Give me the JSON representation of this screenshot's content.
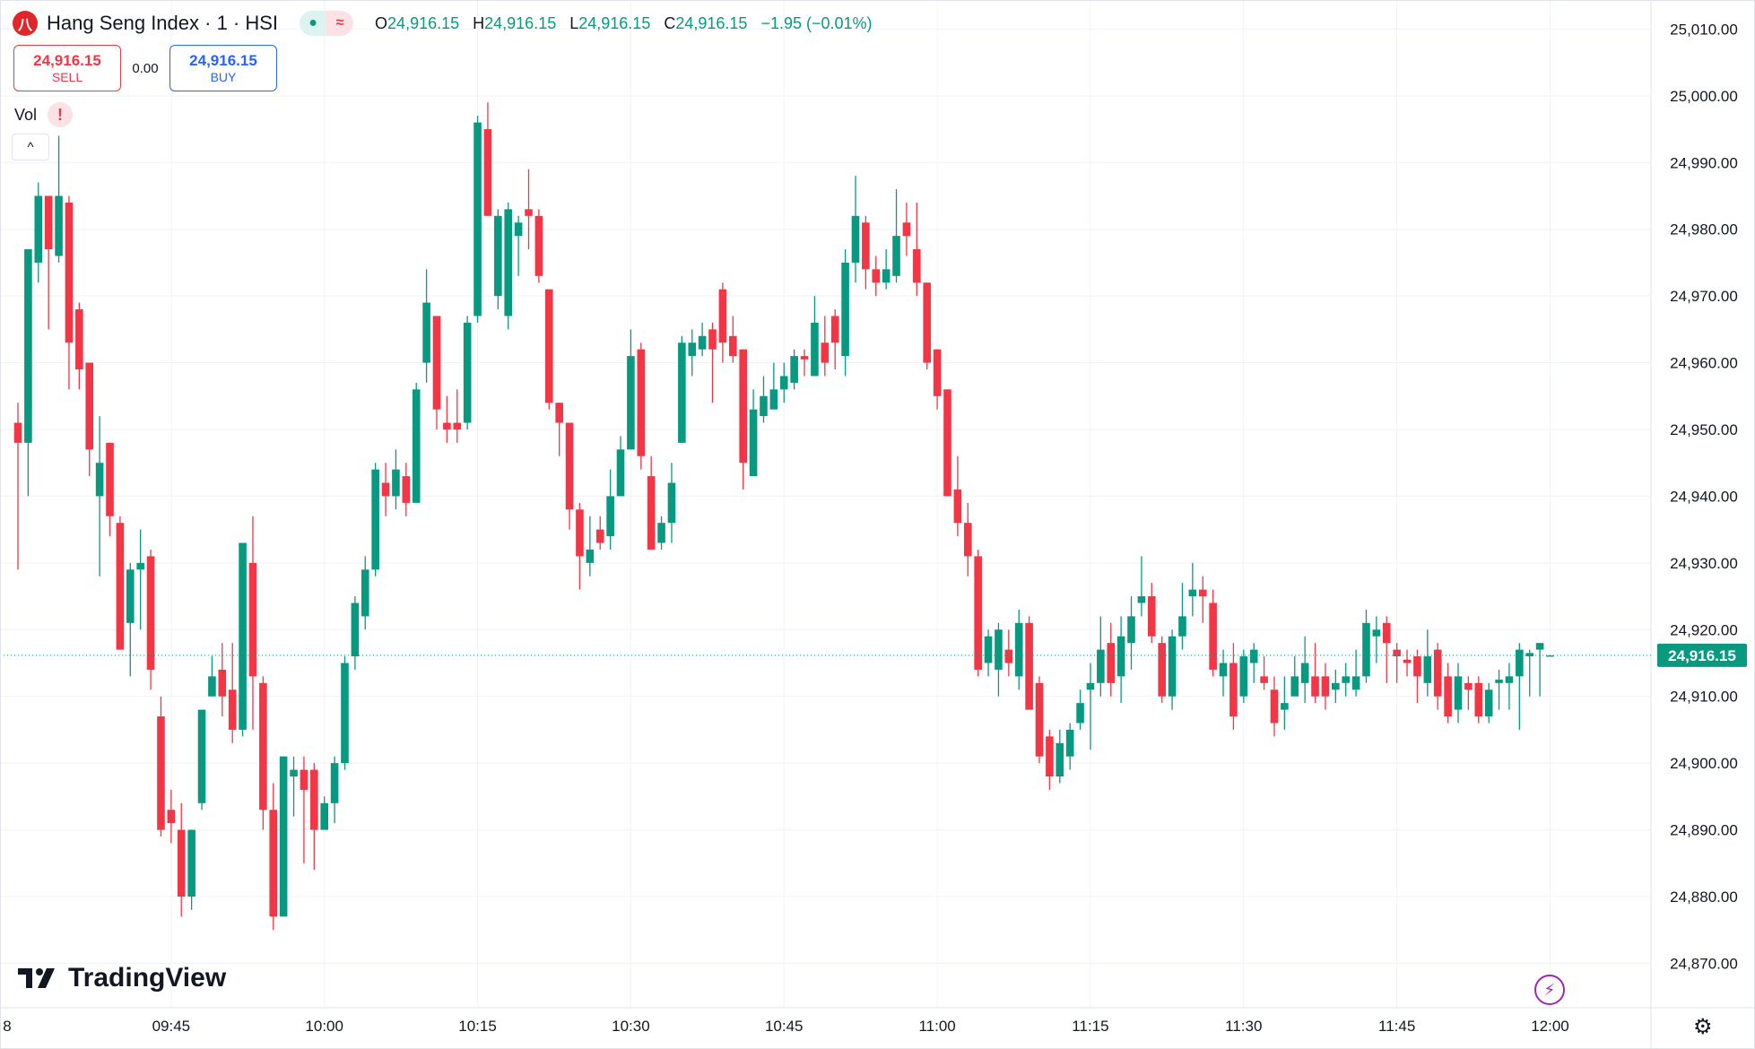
{
  "header": {
    "title": "Hang Seng Index · 1 · HSI",
    "logo_text": "八",
    "status_dot": "●",
    "status_wave": "≈",
    "ohlc": {
      "o_label": "O",
      "o": "24,916.15",
      "h_label": "H",
      "h": "24,916.15",
      "l_label": "L",
      "l": "24,916.15",
      "c_label": "C",
      "c": "24,916.15",
      "change": "−1.95 (−0.01%)"
    }
  },
  "trade": {
    "sell_price": "24,916.15",
    "sell_label": "SELL",
    "spread": "0.00",
    "buy_price": "24,916.15",
    "buy_label": "BUY"
  },
  "volume": {
    "label": "Vol",
    "warning": "!"
  },
  "collapse_icon": "^",
  "brand": {
    "name": "TradingView",
    "mark": "17"
  },
  "icons": {
    "lightning": "lightning-icon",
    "settings": "gear-icon"
  },
  "colors": {
    "up": "#089981",
    "down": "#f23645",
    "grid": "#f0f3fa",
    "current_price": "#089981"
  },
  "chart_data": {
    "type": "candlestick",
    "symbol": "HSI",
    "interval": "1 minute",
    "grid": true,
    "ylim": [
      24866,
      25014
    ],
    "y_ticks": [
      "25,010.00",
      "25,000.00",
      "24,990.00",
      "24,980.00",
      "24,970.00",
      "24,960.00",
      "24,950.00",
      "24,940.00",
      "24,930.00",
      "24,920.00",
      "24,910.00",
      "24,900.00",
      "24,890.00",
      "24,880.00",
      "24,870.00"
    ],
    "x_ticks": [
      "8",
      "09:45",
      "10:00",
      "10:15",
      "10:30",
      "10:45",
      "11:00",
      "11:15",
      "11:30",
      "11:45",
      "12:00"
    ],
    "current_price": 24916.15,
    "current_price_label": "24,916.15",
    "candles_columns": [
      "time",
      "open",
      "high",
      "low",
      "close"
    ],
    "candles": [
      [
        "09:30",
        24951,
        24954,
        24929,
        24948
      ],
      [
        "09:31",
        24948,
        24977,
        24940,
        24977
      ],
      [
        "09:32",
        24975,
        24987,
        24972,
        24985
      ],
      [
        "09:33",
        24985,
        24985,
        24965,
        24977
      ],
      [
        "09:34",
        24976,
        24994,
        24975,
        24985
      ],
      [
        "09:35",
        24984,
        24985,
        24956,
        24963
      ],
      [
        "09:36",
        24968,
        24969,
        24956,
        24959
      ],
      [
        "09:37",
        24960,
        24960,
        24943,
        24947
      ],
      [
        "09:38",
        24940,
        24952,
        24928,
        24945
      ],
      [
        "09:39",
        24948,
        24948,
        24934,
        24937
      ],
      [
        "09:40",
        24936,
        24937,
        24917,
        24917
      ],
      [
        "09:41",
        24921,
        24930,
        24913,
        24929
      ],
      [
        "09:42",
        24929,
        24935,
        24920,
        24930
      ],
      [
        "09:43",
        24931,
        24932,
        24911,
        24914
      ],
      [
        "09:44",
        24907,
        24910,
        24889,
        24890
      ],
      [
        "09:45",
        24893,
        24896,
        24888,
        24891
      ],
      [
        "09:46",
        24890,
        24894,
        24877,
        24880
      ],
      [
        "09:47",
        24880,
        24890,
        24878,
        24890
      ],
      [
        "09:48",
        24894,
        24908,
        24893,
        24908
      ],
      [
        "09:49",
        24910,
        24916,
        24910,
        24913
      ],
      [
        "09:50",
        24914,
        24918,
        24907,
        24910
      ],
      [
        "09:51",
        24911,
        24918,
        24903,
        24905
      ],
      [
        "09:52",
        24905,
        24933,
        24904,
        24933
      ],
      [
        "09:53",
        24930,
        24937,
        24905,
        24913
      ],
      [
        "09:54",
        24912,
        24913,
        24890,
        24893
      ],
      [
        "09:55",
        24893,
        24897,
        24875,
        24877
      ],
      [
        "09:56",
        24877,
        24901,
        24878,
        24901
      ],
      [
        "09:57",
        24898,
        24901,
        24892,
        24899
      ],
      [
        "09:58",
        24899,
        24901,
        24885,
        24896
      ],
      [
        "09:59",
        24899,
        24900,
        24884,
        24890
      ],
      [
        "10:00",
        24890,
        24895,
        24890,
        24894
      ],
      [
        "10:01",
        24894,
        24901,
        24891,
        24900
      ],
      [
        "10:02",
        24900,
        24916,
        24899,
        24915
      ],
      [
        "10:03",
        24916,
        24925,
        24914,
        24924
      ],
      [
        "10:04",
        24922,
        24931,
        24920,
        24929
      ],
      [
        "10:05",
        24929,
        24945,
        24928,
        24944
      ],
      [
        "10:06",
        24942,
        24945,
        24937,
        24940
      ],
      [
        "10:07",
        24940,
        24947,
        24938,
        24944
      ],
      [
        "10:08",
        24943,
        24945,
        24937,
        24939
      ],
      [
        "10:09",
        24939,
        24957,
        24939,
        24956
      ],
      [
        "10:10",
        24960,
        24974,
        24957,
        24969
      ],
      [
        "10:11",
        24967,
        24967,
        24950,
        24953
      ],
      [
        "10:12",
        24951,
        24955,
        24948,
        24950
      ],
      [
        "10:13",
        24951,
        24956,
        24948,
        24950
      ],
      [
        "10:14",
        24951,
        24967,
        24950,
        24966
      ],
      [
        "10:15",
        24967,
        24997,
        24966,
        24996
      ],
      [
        "10:16",
        24995,
        24999,
        24982,
        24982
      ],
      [
        "10:17",
        24970,
        24983,
        24968,
        24982
      ],
      [
        "10:18",
        24967,
        24984,
        24965,
        24983
      ],
      [
        "10:19",
        24979,
        24982,
        24973,
        24981
      ],
      [
        "10:20",
        24983,
        24989,
        24977,
        24982
      ],
      [
        "10:21",
        24982,
        24983,
        24972,
        24973
      ],
      [
        "10:22",
        24971,
        24971,
        24953,
        24954
      ],
      [
        "10:23",
        24954,
        24954,
        24946,
        24951
      ],
      [
        "10:24",
        24951,
        24951,
        24935,
        24938
      ],
      [
        "10:25",
        24938,
        24939,
        24926,
        24931
      ],
      [
        "10:26",
        24930,
        24937,
        24928,
        24932
      ],
      [
        "10:27",
        24935,
        24937,
        24932,
        24933
      ],
      [
        "10:28",
        24934,
        24944,
        24932,
        24940
      ],
      [
        "10:29",
        24940,
        24949,
        24940,
        24947
      ],
      [
        "10:30",
        24947,
        24965,
        24947,
        24961
      ],
      [
        "10:31",
        24962,
        24963,
        24944,
        24946
      ],
      [
        "10:32",
        24943,
        24946,
        24932,
        24932
      ],
      [
        "10:33",
        24933,
        24937,
        24932,
        24936
      ],
      [
        "10:34",
        24936,
        24945,
        24933,
        24942
      ],
      [
        "10:35",
        24948,
        24964,
        24948,
        24963
      ],
      [
        "10:36",
        24961,
        24965,
        24958,
        24963
      ],
      [
        "10:37",
        24962,
        24966,
        24961,
        24964
      ],
      [
        "10:38",
        24965,
        24966,
        24954,
        24962
      ],
      [
        "10:39",
        24971,
        24972,
        24960,
        24963
      ],
      [
        "10:40",
        24964,
        24967,
        24960,
        24961
      ],
      [
        "10:41",
        24962,
        24962,
        24941,
        24945
      ],
      [
        "10:42",
        24943,
        24956,
        24943,
        24953
      ],
      [
        "10:43",
        24952,
        24958,
        24951,
        24955
      ],
      [
        "10:44",
        24953,
        24960,
        24953,
        24956
      ],
      [
        "10:45",
        24956,
        24960,
        24954,
        24958
      ],
      [
        "10:46",
        24957,
        24962,
        24956,
        24961
      ],
      [
        "10:47",
        24961,
        24962,
        24958,
        24960.5
      ],
      [
        "10:48",
        24958,
        24970,
        24958,
        24966
      ],
      [
        "10:49",
        24963,
        24967,
        24958,
        24960
      ],
      [
        "10:50",
        24967,
        24968,
        24959,
        24963
      ],
      [
        "10:51",
        24961,
        24977,
        24958,
        24975
      ],
      [
        "10:52",
        24975,
        24988,
        24972,
        24982
      ],
      [
        "10:53",
        24981,
        24982,
        24971,
        24974
      ],
      [
        "10:54",
        24974,
        24976,
        24970,
        24972
      ],
      [
        "10:55",
        24972,
        24977,
        24971,
        24974
      ],
      [
        "10:56",
        24973,
        24986,
        24972,
        24979
      ],
      [
        "10:57",
        24981,
        24984,
        24976,
        24979
      ],
      [
        "10:58",
        24977,
        24984,
        24970,
        24972
      ],
      [
        "10:59",
        24972,
        24972,
        24959,
        24960
      ],
      [
        "11:00",
        24962,
        24962,
        24953,
        24955
      ],
      [
        "11:01",
        24956,
        24956,
        24940,
        24940
      ],
      [
        "11:02",
        24941,
        24946,
        24934,
        24936
      ],
      [
        "11:03",
        24936,
        24939,
        24928,
        24931
      ],
      [
        "11:04",
        24931,
        24932,
        24913,
        24914
      ],
      [
        "11:05",
        24915,
        24920,
        24913,
        24919
      ],
      [
        "11:06",
        24914,
        24921,
        24910,
        24920
      ],
      [
        "11:07",
        24917,
        24920,
        24913,
        24915
      ],
      [
        "11:08",
        24913,
        24923,
        24911,
        24921
      ],
      [
        "11:09",
        24921,
        24922,
        24908,
        24908
      ],
      [
        "11:10",
        24912,
        24913,
        24900,
        24901
      ],
      [
        "11:11",
        24904,
        24905,
        24896,
        24898
      ],
      [
        "11:12",
        24898,
        24905,
        24897,
        24903
      ],
      [
        "11:13",
        24901,
        24906,
        24899,
        24905
      ],
      [
        "11:14",
        24906,
        24911,
        24905,
        24909
      ],
      [
        "11:15",
        24911,
        24915,
        24902,
        24912
      ],
      [
        "11:16",
        24912,
        24922,
        24910,
        24917
      ],
      [
        "11:17",
        24918,
        24921,
        24910,
        24912
      ],
      [
        "11:18",
        24913,
        24922,
        24909,
        24919
      ],
      [
        "11:19",
        24918,
        24925,
        24914,
        24922
      ],
      [
        "11:20",
        24924,
        24931,
        24922,
        24925
      ],
      [
        "11:21",
        24925,
        24927,
        24918,
        24919
      ],
      [
        "11:22",
        24918,
        24919,
        24909,
        24910
      ],
      [
        "11:23",
        24910,
        24920,
        24908,
        24919
      ],
      [
        "11:24",
        24919,
        24927,
        24917,
        24922
      ],
      [
        "11:25",
        24925,
        24930,
        24922,
        24926
      ],
      [
        "11:26",
        24926,
        24928,
        24921,
        24925
      ],
      [
        "11:27",
        24924,
        24926,
        24913,
        24914
      ],
      [
        "11:28",
        24913,
        24917,
        24910,
        24915
      ],
      [
        "11:29",
        24915,
        24918,
        24905,
        24907
      ],
      [
        "11:30",
        24910,
        24917,
        24909,
        24916
      ],
      [
        "11:31",
        24915,
        24918,
        24912,
        24917
      ],
      [
        "11:32",
        24913,
        24916,
        24911,
        24912
      ],
      [
        "11:33",
        24911,
        24913,
        24904,
        24906
      ],
      [
        "11:34",
        24908,
        24913,
        24905,
        24909
      ],
      [
        "11:35",
        24910,
        24916,
        24910,
        24913
      ],
      [
        "11:36",
        24912,
        24919,
        24909,
        24915
      ],
      [
        "11:37",
        24913,
        24918,
        24909,
        24910
      ],
      [
        "11:38",
        24913,
        24915,
        24908,
        24910
      ],
      [
        "11:39",
        24911,
        24914,
        24909,
        24912
      ],
      [
        "11:40",
        24912,
        24915,
        24910,
        24913
      ],
      [
        "11:41",
        24911,
        24917,
        24910,
        24913
      ],
      [
        "11:42",
        24913,
        24923,
        24912,
        24921
      ],
      [
        "11:43",
        24919,
        24922,
        24915,
        24920
      ],
      [
        "11:44",
        24921,
        24922,
        24912,
        24918
      ],
      [
        "11:45",
        24917,
        24918,
        24912,
        24916
      ],
      [
        "11:46",
        24915.5,
        24917,
        24913,
        24915
      ],
      [
        "11:47",
        24916,
        24917,
        24909,
        24913
      ],
      [
        "11:48",
        24912,
        24920,
        24910,
        24916
      ],
      [
        "11:49",
        24917,
        24918,
        24908,
        24910
      ],
      [
        "11:50",
        24913,
        24915,
        24906,
        24907
      ],
      [
        "11:51",
        24908,
        24915,
        24906,
        24913
      ],
      [
        "11:52",
        24912,
        24913,
        24908,
        24911
      ],
      [
        "11:53",
        24912,
        24913,
        24906,
        24907
      ],
      [
        "11:54",
        24907,
        24912,
        24906,
        24911
      ],
      [
        "11:55",
        24912,
        24914,
        24908,
        24912.5
      ],
      [
        "11:56",
        24912,
        24915,
        24908,
        24913
      ],
      [
        "11:57",
        24913,
        24918,
        24905,
        24917
      ],
      [
        "11:58",
        24916,
        24917,
        24910,
        24916.5
      ],
      [
        "11:59",
        24917,
        24918,
        24910,
        24918
      ],
      [
        "12:00",
        24916.15,
        24916.15,
        24916.15,
        24916.15
      ]
    ]
  }
}
